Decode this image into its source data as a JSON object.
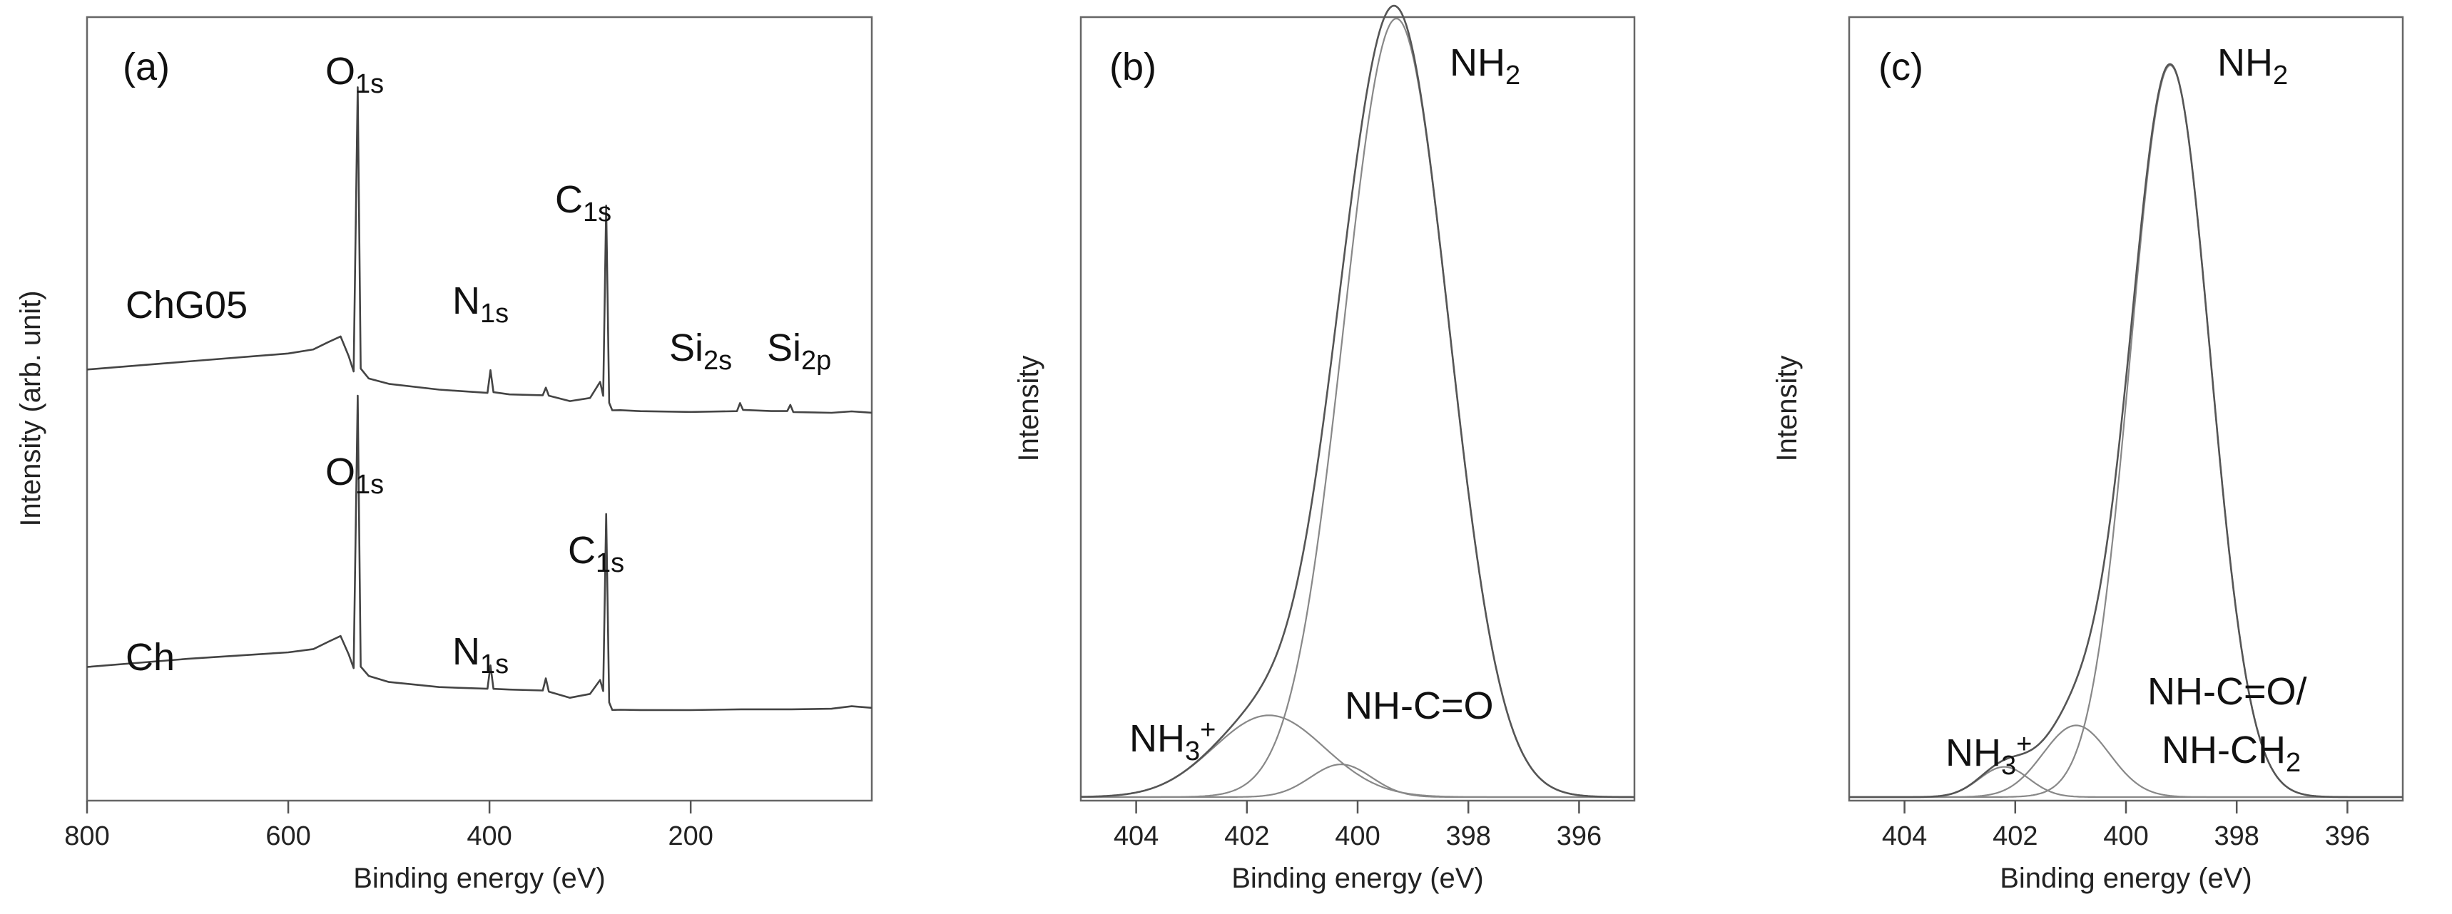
{
  "chart_data": [
    {
      "panel": "(a)",
      "type": "line",
      "xlabel": "Binding energy (eV)",
      "ylabel": "Intensity (arb. unit)",
      "xlim": [
        800,
        20
      ],
      "x_reversed": true,
      "x_ticks": [
        800,
        600,
        400,
        200
      ],
      "y_ticks": false,
      "ylim": [
        0,
        100
      ],
      "grid": false,
      "series": [
        {
          "name": "ChG05",
          "x": [
            800,
            700,
            600,
            575,
            560,
            548,
            540,
            535,
            531,
            528,
            520,
            500,
            450,
            402,
            399,
            396,
            380,
            347,
            344,
            341,
            320,
            300,
            290,
            287,
            284,
            281,
            278,
            270,
            250,
            200,
            154,
            151,
            148,
            120,
            104,
            101,
            98,
            60,
            40,
            20
          ],
          "y": [
            55.5,
            56.5,
            57.5,
            58.0,
            59.0,
            59.8,
            57.2,
            55.2,
            94.0,
            55.8,
            54.5,
            53.8,
            53.0,
            52.5,
            55.5,
            52.4,
            52.0,
            51.8,
            52.8,
            51.7,
            51.0,
            51.5,
            53.8,
            52.0,
            78.0,
            51.2,
            50.2,
            50.2,
            50.0,
            49.8,
            49.8,
            50.8,
            49.8,
            49.6,
            49.6,
            50.5,
            49.6,
            49.6,
            49.9,
            49.8
          ]
        },
        {
          "name": "Ch",
          "x": [
            800,
            700,
            600,
            575,
            560,
            548,
            540,
            535,
            531,
            528,
            520,
            500,
            450,
            402,
            399,
            396,
            380,
            347,
            344,
            341,
            320,
            300,
            290,
            287,
            284,
            281,
            278,
            270,
            250,
            200,
            150,
            100,
            60,
            40,
            20
          ],
          "y": [
            15.0,
            16.0,
            16.8,
            17.2,
            18.2,
            19.0,
            16.6,
            14.8,
            52.0,
            15.2,
            14.0,
            13.2,
            12.5,
            12.2,
            15.3,
            12.0,
            11.8,
            11.6,
            13.2,
            11.4,
            10.6,
            11.2,
            13.2,
            11.8,
            36.0,
            10.4,
            9.4,
            9.4,
            9.3,
            9.2,
            9.2,
            9.1,
            9.1,
            9.4,
            9.2
          ]
        }
      ],
      "annotations": {
        "chg05_o": "O",
        "chg05_o_sub": "1s",
        "chg05_n": "N",
        "chg05_n_sub": "1s",
        "chg05_c": "C",
        "chg05_c_sub": "1s",
        "chg05_si2s": "Si",
        "chg05_si2s_sub": "2s",
        "chg05_si2p": "Si",
        "chg05_si2p_sub": "2p",
        "ch_o": "O",
        "ch_o_sub": "1s",
        "ch_n": "N",
        "ch_n_sub": "1s",
        "ch_c": "C",
        "ch_c_sub": "1s",
        "label_chg05": "ChG05",
        "label_ch": "Ch"
      }
    },
    {
      "panel": "(b)",
      "type": "line",
      "xlabel": "Binding energy (eV)",
      "ylabel": "Intensity",
      "xlim": [
        405,
        395
      ],
      "x_reversed": true,
      "x_ticks": [
        404,
        402,
        400,
        398,
        396
      ],
      "y_ticks": false,
      "ylim": [
        0,
        100
      ],
      "grid": false,
      "peaks": [
        {
          "label": "NH2",
          "center": 399.3,
          "height": 100,
          "sigma": 0.95
        },
        {
          "label": "NH3+",
          "center": 401.6,
          "height": 10.5,
          "sigma": 1.0
        },
        {
          "label": "NH-C=O",
          "center": 400.3,
          "height": 4.2,
          "sigma": 0.55
        }
      ],
      "annotations": {
        "nh2": "NH",
        "nh2_sub": "2",
        "nh3": "NH",
        "nh3_sub": "3",
        "nh3_sup": "+",
        "nhco": "NH-C=O"
      }
    },
    {
      "panel": "(c)",
      "type": "line",
      "xlabel": "Binding energy (eV)",
      "ylabel": "Intensity",
      "xlim": [
        405,
        395
      ],
      "x_reversed": true,
      "x_ticks": [
        404,
        402,
        400,
        398,
        396
      ],
      "y_ticks": false,
      "ylim": [
        0,
        100
      ],
      "grid": false,
      "peaks": [
        {
          "label": "NH2",
          "center": 399.2,
          "height": 97,
          "sigma": 0.72
        },
        {
          "label": "NH-C=O/NH-CH2",
          "center": 400.9,
          "height": 9.5,
          "sigma": 0.6
        },
        {
          "label": "NH3+",
          "center": 402.2,
          "height": 4.0,
          "sigma": 0.45
        }
      ],
      "annotations": {
        "nh2": "NH",
        "nh2_sub": "2",
        "nh3": "NH",
        "nh3_sub": "3",
        "nh3_sup": "+",
        "nhco_line1": "NH-C=O/",
        "nhco_line2": "NH-CH",
        "nhco_line2_sub": "2"
      }
    }
  ]
}
